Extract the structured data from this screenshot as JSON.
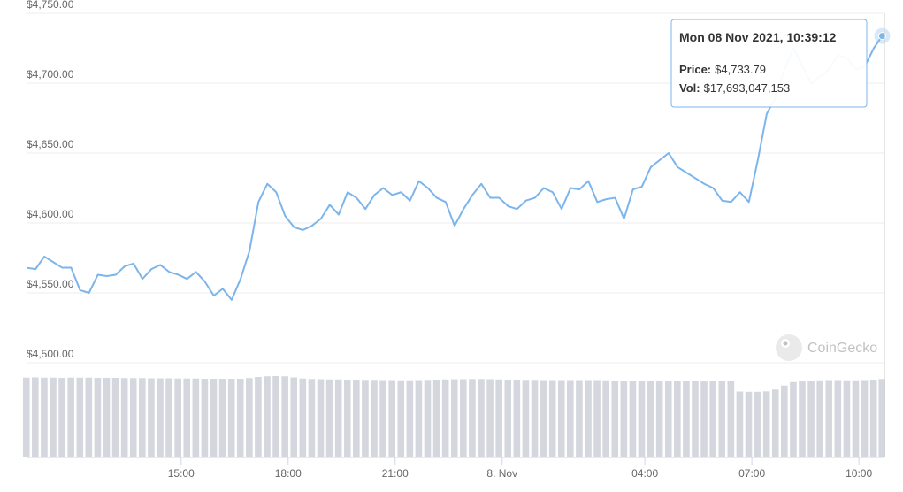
{
  "chart_data": {
    "type": "line",
    "ylim": [
      4500,
      4750
    ],
    "yticks": [
      {
        "value": 4500,
        "label": "$4,500.00"
      },
      {
        "value": 4550,
        "label": "$4,550.00"
      },
      {
        "value": 4600,
        "label": "$4,600.00"
      },
      {
        "value": 4650,
        "label": "$4,650.00"
      },
      {
        "value": 4700,
        "label": "$4,700.00"
      },
      {
        "value": 4750,
        "label": "$4,750.00"
      }
    ],
    "xlim": [
      "2021-11-07T10:40",
      "2021-11-08T10:40"
    ],
    "xticks": [
      {
        "value": "2021-11-07T15:00",
        "label": "15:00"
      },
      {
        "value": "2021-11-07T18:00",
        "label": "18:00"
      },
      {
        "value": "2021-11-07T21:00",
        "label": "21:00"
      },
      {
        "value": "2021-11-08T00:00",
        "label": "8. Nov"
      },
      {
        "value": "2021-11-08T04:00",
        "label": "04:00"
      },
      {
        "value": "2021-11-08T07:00",
        "label": "07:00"
      },
      {
        "value": "2021-11-08T10:00",
        "label": "10:00"
      }
    ],
    "grid": true,
    "x": [
      "2021-11-07T10:40",
      "2021-11-07T10:55",
      "2021-11-07T11:10",
      "2021-11-07T11:25",
      "2021-11-07T11:40",
      "2021-11-07T11:55",
      "2021-11-07T12:10",
      "2021-11-07T12:25",
      "2021-11-07T12:40",
      "2021-11-07T12:55",
      "2021-11-07T13:10",
      "2021-11-07T13:25",
      "2021-11-07T13:40",
      "2021-11-07T13:55",
      "2021-11-07T14:10",
      "2021-11-07T14:25",
      "2021-11-07T14:40",
      "2021-11-07T14:55",
      "2021-11-07T15:10",
      "2021-11-07T15:25",
      "2021-11-07T15:40",
      "2021-11-07T15:55",
      "2021-11-07T16:10",
      "2021-11-07T16:25",
      "2021-11-07T16:40",
      "2021-11-07T16:55",
      "2021-11-07T17:10",
      "2021-11-07T17:25",
      "2021-11-07T17:40",
      "2021-11-07T17:55",
      "2021-11-07T18:10",
      "2021-11-07T18:25",
      "2021-11-07T18:40",
      "2021-11-07T18:55",
      "2021-11-07T19:10",
      "2021-11-07T19:25",
      "2021-11-07T19:40",
      "2021-11-07T19:55",
      "2021-11-07T20:10",
      "2021-11-07T20:25",
      "2021-11-07T20:40",
      "2021-11-07T20:55",
      "2021-11-07T21:10",
      "2021-11-07T21:25",
      "2021-11-07T21:40",
      "2021-11-07T21:55",
      "2021-11-07T22:10",
      "2021-11-07T22:25",
      "2021-11-07T22:40",
      "2021-11-07T22:55",
      "2021-11-07T23:10",
      "2021-11-07T23:25",
      "2021-11-07T23:40",
      "2021-11-07T23:55",
      "2021-11-08T00:10",
      "2021-11-08T00:25",
      "2021-11-08T00:40",
      "2021-11-08T00:55",
      "2021-11-08T01:10",
      "2021-11-08T01:25",
      "2021-11-08T01:40",
      "2021-11-08T01:55",
      "2021-11-08T02:10",
      "2021-11-08T02:25",
      "2021-11-08T02:40",
      "2021-11-08T02:55",
      "2021-11-08T03:10",
      "2021-11-08T03:25",
      "2021-11-08T03:40",
      "2021-11-08T03:55",
      "2021-11-08T04:10",
      "2021-11-08T04:25",
      "2021-11-08T04:40",
      "2021-11-08T04:55",
      "2021-11-08T05:10",
      "2021-11-08T05:25",
      "2021-11-08T05:40",
      "2021-11-08T05:55",
      "2021-11-08T06:10",
      "2021-11-08T06:25",
      "2021-11-08T06:40",
      "2021-11-08T06:55",
      "2021-11-08T07:10",
      "2021-11-08T07:25",
      "2021-11-08T07:40",
      "2021-11-08T07:55",
      "2021-11-08T08:10",
      "2021-11-08T08:25",
      "2021-11-08T08:40",
      "2021-11-08T08:55",
      "2021-11-08T09:10",
      "2021-11-08T09:25",
      "2021-11-08T09:40",
      "2021-11-08T09:55",
      "2021-11-08T10:10",
      "2021-11-08T10:25",
      "2021-11-08T10:39:12"
    ],
    "price": {
      "color": "#7cb5ec",
      "values": [
        4568,
        4567,
        4576,
        4572,
        4568,
        4568,
        4552,
        4550,
        4563,
        4562,
        4563,
        4569,
        4571,
        4560,
        4567,
        4570,
        4565,
        4563,
        4560,
        4565,
        4558,
        4548,
        4553,
        4545,
        4560,
        4580,
        4615,
        4628,
        4622,
        4605,
        4597,
        4595,
        4598,
        4603,
        4613,
        4606,
        4622,
        4618,
        4610,
        4620,
        4625,
        4620,
        4622,
        4616,
        4630,
        4625,
        4618,
        4615,
        4598,
        4610,
        4620,
        4628,
        4618,
        4618,
        4612,
        4610,
        4616,
        4618,
        4625,
        4622,
        4610,
        4625,
        4624,
        4630,
        4615,
        4617,
        4618,
        4603,
        4624,
        4626,
        4640,
        4645,
        4650,
        4640,
        4636,
        4632,
        4628,
        4625,
        4616,
        4615,
        4622,
        4615,
        4645,
        4678,
        4690,
        4710,
        4725,
        4712,
        4700,
        4705,
        4710,
        4720,
        4718,
        4710,
        4712,
        4725,
        4733.79
      ]
    },
    "volume": {
      "color": "#d4d7dd",
      "values": [
        18000000000,
        18050000000,
        18000000000,
        18000000000,
        17950000000,
        18000000000,
        18000000000,
        18000000000,
        17950000000,
        17950000000,
        17950000000,
        17900000000,
        17900000000,
        17900000000,
        17850000000,
        17850000000,
        17850000000,
        17800000000,
        17800000000,
        17800000000,
        17750000000,
        17750000000,
        17750000000,
        17750000000,
        17750000000,
        17900000000,
        18150000000,
        18300000000,
        18350000000,
        18300000000,
        18050000000,
        17800000000,
        17700000000,
        17650000000,
        17600000000,
        17600000000,
        17550000000,
        17550000000,
        17500000000,
        17500000000,
        17450000000,
        17450000000,
        17400000000,
        17400000000,
        17450000000,
        17500000000,
        17550000000,
        17600000000,
        17650000000,
        17650000000,
        17700000000,
        17700000000,
        17650000000,
        17600000000,
        17550000000,
        17550000000,
        17500000000,
        17500000000,
        17450000000,
        17450000000,
        17450000000,
        17450000000,
        17450000000,
        17450000000,
        17450000000,
        17400000000,
        17350000000,
        17300000000,
        17250000000,
        17250000000,
        17250000000,
        17300000000,
        17300000000,
        17300000000,
        17300000000,
        17300000000,
        17250000000,
        17250000000,
        17200000000,
        17150000000,
        14850000000,
        14800000000,
        14800000000,
        14900000000,
        15300000000,
        16200000000,
        17000000000,
        17250000000,
        17350000000,
        17400000000,
        17450000000,
        17450000000,
        17400000000,
        17400000000,
        17450000000,
        17550000000,
        17693047153
      ]
    },
    "watermark": "CoinGecko",
    "tooltip": {
      "title": "Mon 08 Nov 2021, 10:39:12",
      "price_label": "Price:",
      "price": "$4,733.79",
      "vol_label": "Vol:",
      "vol": "$17,693,047,153"
    }
  }
}
